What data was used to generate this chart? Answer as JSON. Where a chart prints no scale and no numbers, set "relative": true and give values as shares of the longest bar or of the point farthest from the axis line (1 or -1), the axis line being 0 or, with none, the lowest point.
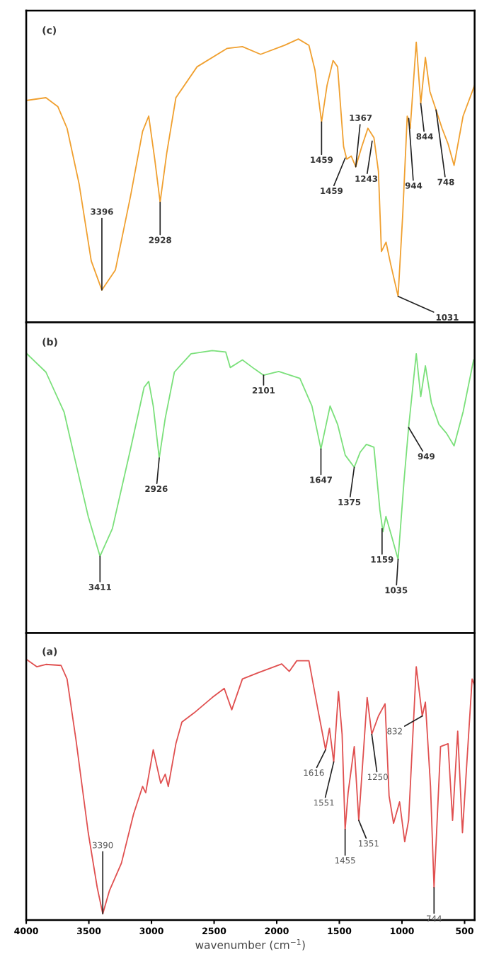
{
  "chart_data": [
    {
      "type": "line",
      "title": "(c)",
      "relative": true,
      "xlim": [
        4000,
        420
      ],
      "tick_labels": false,
      "color": "#f0a030",
      "x": [
        4000,
        3843,
        3747,
        3674,
        3578,
        3481,
        3396,
        3288,
        3167,
        3071,
        3022,
        2974,
        2931,
        2878,
        2805,
        2636,
        2395,
        2274,
        2129,
        1936,
        1827,
        1743,
        1695,
        1642,
        1598,
        1550,
        1514,
        1466,
        1441,
        1405,
        1369,
        1321,
        1272,
        1224,
        1188,
        1164,
        1127,
        1091,
        1031,
        994,
        958,
        934,
        886,
        850,
        813,
        777,
        728,
        680,
        632,
        584,
        512,
        420
      ],
      "values": [
        0.783,
        0.793,
        0.761,
        0.685,
        0.489,
        0.217,
        0.114,
        0.185,
        0.446,
        0.674,
        0.728,
        0.576,
        0.424,
        0.598,
        0.793,
        0.902,
        0.967,
        0.973,
        0.946,
        0.978,
        1.0,
        0.978,
        0.891,
        0.707,
        0.837,
        0.924,
        0.902,
        0.62,
        0.576,
        0.587,
        0.549,
        0.62,
        0.685,
        0.652,
        0.533,
        0.25,
        0.283,
        0.207,
        0.092,
        0.38,
        0.728,
        0.685,
        0.989,
        0.772,
        0.935,
        0.815,
        0.75,
        0.685,
        0.63,
        0.554,
        0.728,
        0.837
      ],
      "annotations": [
        {
          "text": "3396",
          "x": 3396,
          "y": 0.114
        },
        {
          "text": "2928",
          "x": 2931,
          "y": 0.424
        },
        {
          "text": "1459",
          "x": 1642,
          "y": 0.707
        },
        {
          "text": "1367",
          "x": 1369,
          "y": 0.549
        },
        {
          "text": "1459",
          "x": 1453,
          "y": 0.58
        },
        {
          "text": "1243",
          "x": 1238,
          "y": 0.64
        },
        {
          "text": "944",
          "x": 946,
          "y": 0.72
        },
        {
          "text": "844",
          "x": 850,
          "y": 0.772
        },
        {
          "text": "748",
          "x": 728,
          "y": 0.75
        },
        {
          "text": "1031",
          "x": 1031,
          "y": 0.092
        }
      ]
    },
    {
      "type": "line",
      "title": "(b)",
      "relative": true,
      "xlim": [
        4000,
        420
      ],
      "tick_labels": false,
      "color": "#7be07b",
      "x": [
        4000,
        3843,
        3698,
        3602,
        3505,
        3411,
        3312,
        3167,
        3059,
        3022,
        2986,
        2938,
        2890,
        2817,
        2684,
        2515,
        2407,
        2371,
        2274,
        2177,
        2105,
        1984,
        1815,
        1719,
        1647,
        1574,
        1514,
        1453,
        1381,
        1333,
        1284,
        1224,
        1176,
        1152,
        1128,
        1079,
        1031,
        983,
        947,
        886,
        850,
        813,
        765,
        705,
        644,
        584,
        512,
        428
      ],
      "values": [
        0.991,
        0.924,
        0.783,
        0.598,
        0.413,
        0.272,
        0.37,
        0.652,
        0.87,
        0.891,
        0.804,
        0.62,
        0.761,
        0.924,
        0.989,
        1.0,
        0.995,
        0.94,
        0.967,
        0.935,
        0.913,
        0.926,
        0.902,
        0.804,
        0.652,
        0.804,
        0.739,
        0.63,
        0.587,
        0.641,
        0.668,
        0.658,
        0.435,
        0.359,
        0.413,
        0.337,
        0.261,
        0.543,
        0.728,
        0.989,
        0.837,
        0.946,
        0.815,
        0.739,
        0.707,
        0.663,
        0.783,
        0.967
      ],
      "annotations": [
        {
          "text": "3411",
          "x": 3411,
          "y": 0.272
        },
        {
          "text": "2926",
          "x": 2938,
          "y": 0.62
        },
        {
          "text": "2101",
          "x": 2105,
          "y": 0.913
        },
        {
          "text": "1647",
          "x": 1647,
          "y": 0.652
        },
        {
          "text": "1375",
          "x": 1381,
          "y": 0.587
        },
        {
          "text": "1159",
          "x": 1159,
          "y": 0.37
        },
        {
          "text": "1035",
          "x": 1031,
          "y": 0.261
        },
        {
          "text": "949",
          "x": 947,
          "y": 0.728
        }
      ]
    },
    {
      "type": "line",
      "title": "(a)",
      "relative": true,
      "xlim": [
        4000,
        420
      ],
      "tick_labels": "x",
      "color": "#e05050",
      "xlabel": "wavenumber (cm$^{−1}$)",
      "xticks": [
        4000,
        3500,
        3000,
        2500,
        2000,
        1500,
        1000,
        500
      ],
      "x": [
        4000,
        3916,
        3843,
        3722,
        3674,
        3602,
        3505,
        3433,
        3389,
        3336,
        3240,
        3143,
        3071,
        3046,
        2986,
        2926,
        2890,
        2866,
        2805,
        2757,
        2660,
        2515,
        2419,
        2359,
        2274,
        2153,
        1960,
        1900,
        1840,
        1743,
        1671,
        1610,
        1579,
        1545,
        1507,
        1478,
        1454,
        1430,
        1381,
        1345,
        1278,
        1241,
        1188,
        1135,
        1103,
        1067,
        1019,
        978,
        947,
        886,
        838,
        813,
        772,
        744,
        692,
        632,
        596,
        555,
        517,
        440,
        420
      ],
      "values": [
        1.0,
        0.971,
        0.98,
        0.976,
        0.924,
        0.688,
        0.335,
        0.124,
        0.024,
        0.112,
        0.218,
        0.406,
        0.512,
        0.488,
        0.653,
        0.524,
        0.559,
        0.512,
        0.676,
        0.759,
        0.794,
        0.853,
        0.888,
        0.806,
        0.924,
        0.947,
        0.982,
        0.953,
        0.994,
        0.994,
        0.806,
        0.653,
        0.735,
        0.606,
        0.876,
        0.712,
        0.347,
        0.488,
        0.665,
        0.382,
        0.853,
        0.712,
        0.782,
        0.829,
        0.476,
        0.371,
        0.453,
        0.3,
        0.382,
        0.971,
        0.782,
        0.835,
        0.512,
        0.124,
        0.665,
        0.676,
        0.382,
        0.724,
        0.335,
        0.924,
        0.9
      ],
      "annotations": [
        {
          "text": "3390",
          "x": 3389,
          "y": 0.024
        },
        {
          "text": "1616",
          "x": 1610,
          "y": 0.653
        },
        {
          "text": "1551",
          "x": 1545,
          "y": 0.606
        },
        {
          "text": "1455",
          "x": 1454,
          "y": 0.347
        },
        {
          "text": "1351",
          "x": 1345,
          "y": 0.382
        },
        {
          "text": "1250",
          "x": 1241,
          "y": 0.712
        },
        {
          "text": "832",
          "x": 838,
          "y": 0.782
        },
        {
          "text": "744",
          "x": 744,
          "y": 0.124
        }
      ]
    }
  ]
}
